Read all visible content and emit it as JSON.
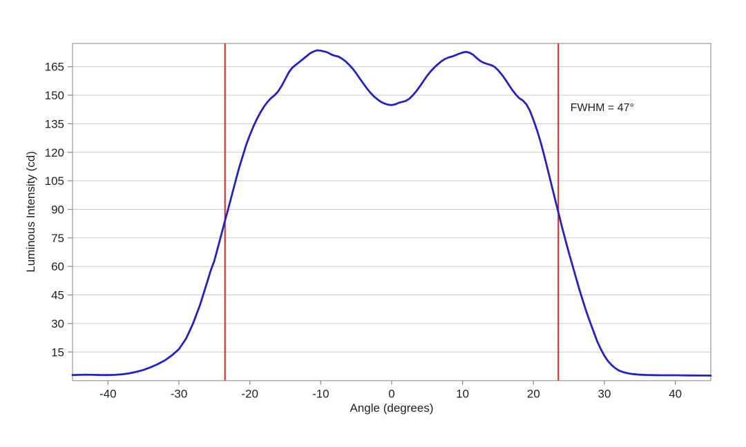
{
  "chart_data": {
    "type": "line",
    "title": "",
    "xlabel": "Angle (degrees)",
    "ylabel": "Luminous Intensity (cd)",
    "xlim": [
      -45,
      45
    ],
    "ylim": [
      0,
      177.2
    ],
    "x_ticks": [
      -40,
      -30,
      -20,
      -10,
      0,
      10,
      20,
      30,
      40
    ],
    "y_ticks": [
      15,
      30,
      45,
      60,
      75,
      90,
      105,
      120,
      135,
      150,
      165
    ],
    "grid": "horizontal-only",
    "legend": "none",
    "colors": {
      "curve": "#2121cc",
      "fwhm_line": "#e01f1f",
      "gridline": "#c9c9c9",
      "border": "#ababab",
      "tick": "#8f8f8f",
      "text": "#1f1f1f",
      "background": "#ffffff"
    },
    "annotation": {
      "text": "FWHM = 47°",
      "x_deg": 25.2,
      "y_cd": 142.4
    },
    "fwhm_markers": {
      "x_values": [
        -23.5,
        23.5
      ],
      "fwhm_deg": 47
    },
    "series": [
      {
        "name": "luminous-intensity-vs-angle",
        "points": [
          [
            -45,
            2.9
          ],
          [
            -44,
            3.0
          ],
          [
            -43,
            3.1
          ],
          [
            -42,
            3.0
          ],
          [
            -41,
            2.9
          ],
          [
            -40,
            2.9
          ],
          [
            -39,
            3.0
          ],
          [
            -38,
            3.3
          ],
          [
            -37,
            3.8
          ],
          [
            -36,
            4.6
          ],
          [
            -35,
            5.6
          ],
          [
            -34,
            7.0
          ],
          [
            -33,
            8.6
          ],
          [
            -32,
            10.6
          ],
          [
            -31,
            13.2
          ],
          [
            -30,
            16.5
          ],
          [
            -29,
            22.0
          ],
          [
            -28,
            30.0
          ],
          [
            -27,
            40.0
          ],
          [
            -26,
            52.0
          ],
          [
            -25.5,
            58.0
          ],
          [
            -25,
            63.0
          ],
          [
            -24.5,
            70.0
          ],
          [
            -24,
            77.0
          ],
          [
            -23.5,
            84.0
          ],
          [
            -23,
            91.0
          ],
          [
            -22.5,
            98.0
          ],
          [
            -22,
            105.0
          ],
          [
            -21.5,
            112.0
          ],
          [
            -21,
            118.0
          ],
          [
            -20.5,
            124.0
          ],
          [
            -20,
            129.0
          ],
          [
            -19.5,
            133.5
          ],
          [
            -19,
            137.5
          ],
          [
            -18.5,
            141.0
          ],
          [
            -18,
            144.0
          ],
          [
            -17.5,
            146.5
          ],
          [
            -17,
            148.5
          ],
          [
            -16.5,
            150.0
          ],
          [
            -16,
            152.0
          ],
          [
            -15.5,
            155.0
          ],
          [
            -15,
            158.5
          ],
          [
            -14.5,
            162.0
          ],
          [
            -14,
            164.5
          ],
          [
            -13.5,
            166.0
          ],
          [
            -13,
            167.5
          ],
          [
            -12.5,
            169.0
          ],
          [
            -12,
            170.5
          ],
          [
            -11.5,
            172.0
          ],
          [
            -11,
            173.0
          ],
          [
            -10.5,
            173.6
          ],
          [
            -10,
            173.4
          ],
          [
            -9.5,
            173.0
          ],
          [
            -9,
            172.4
          ],
          [
            -8.5,
            171.4
          ],
          [
            -8,
            170.7
          ],
          [
            -7.5,
            170.3
          ],
          [
            -7,
            169.2
          ],
          [
            -6.5,
            167.8
          ],
          [
            -6,
            166.0
          ],
          [
            -5.5,
            164.0
          ],
          [
            -5,
            161.5
          ],
          [
            -4.5,
            158.8
          ],
          [
            -4,
            156.2
          ],
          [
            -3.5,
            153.6
          ],
          [
            -3,
            151.3
          ],
          [
            -2.5,
            149.4
          ],
          [
            -2,
            147.8
          ],
          [
            -1.5,
            146.5
          ],
          [
            -1,
            145.6
          ],
          [
            -0.5,
            145.0
          ],
          [
            0,
            144.8
          ],
          [
            0.5,
            145.2
          ],
          [
            1,
            146.0
          ],
          [
            1.5,
            146.5
          ],
          [
            2,
            147.0
          ],
          [
            2.5,
            148.2
          ],
          [
            3,
            150.0
          ],
          [
            3.5,
            152.2
          ],
          [
            4,
            154.8
          ],
          [
            4.5,
            157.5
          ],
          [
            5,
            160.2
          ],
          [
            5.5,
            162.5
          ],
          [
            6,
            164.5
          ],
          [
            6.5,
            166.2
          ],
          [
            7,
            167.8
          ],
          [
            7.5,
            169.0
          ],
          [
            8,
            169.8
          ],
          [
            8.5,
            170.3
          ],
          [
            9,
            171.0
          ],
          [
            9.5,
            171.8
          ],
          [
            10,
            172.4
          ],
          [
            10.5,
            172.8
          ],
          [
            11,
            172.3
          ],
          [
            11.5,
            171.2
          ],
          [
            12,
            169.5
          ],
          [
            12.5,
            168.0
          ],
          [
            13,
            167.0
          ],
          [
            13.5,
            166.4
          ],
          [
            14,
            165.9
          ],
          [
            14.5,
            164.9
          ],
          [
            15,
            163.2
          ],
          [
            15.5,
            161.0
          ],
          [
            16,
            158.4
          ],
          [
            16.5,
            155.6
          ],
          [
            17,
            152.8
          ],
          [
            17.5,
            150.4
          ],
          [
            18,
            148.4
          ],
          [
            18.5,
            147.2
          ],
          [
            19,
            145.2
          ],
          [
            19.5,
            141.8
          ],
          [
            20,
            137.0
          ],
          [
            20.5,
            131.5
          ],
          [
            21,
            125.5
          ],
          [
            21.5,
            118.5
          ],
          [
            22,
            111.0
          ],
          [
            22.5,
            103.5
          ],
          [
            23,
            96.0
          ],
          [
            23.5,
            88.5
          ],
          [
            24,
            81.0
          ],
          [
            24.5,
            74.0
          ],
          [
            25,
            67.0
          ],
          [
            25.5,
            60.5
          ],
          [
            26,
            54.0
          ],
          [
            26.5,
            47.5
          ],
          [
            27,
            41.5
          ],
          [
            27.5,
            35.8
          ],
          [
            28,
            30.5
          ],
          [
            28.5,
            25.5
          ],
          [
            29,
            20.5
          ],
          [
            29.5,
            16.5
          ],
          [
            30,
            13.0
          ],
          [
            30.5,
            10.3
          ],
          [
            31,
            8.2
          ],
          [
            31.5,
            6.6
          ],
          [
            32,
            5.4
          ],
          [
            32.5,
            4.6
          ],
          [
            33,
            4.1
          ],
          [
            33.5,
            3.7
          ],
          [
            34,
            3.4
          ],
          [
            35,
            3.1
          ],
          [
            36,
            2.95
          ],
          [
            37,
            2.85
          ],
          [
            38,
            2.8
          ],
          [
            39,
            2.8
          ],
          [
            40,
            2.8
          ],
          [
            41,
            2.75
          ],
          [
            42,
            2.7
          ],
          [
            43,
            2.7
          ],
          [
            44,
            2.65
          ],
          [
            45,
            2.6
          ]
        ]
      }
    ]
  }
}
